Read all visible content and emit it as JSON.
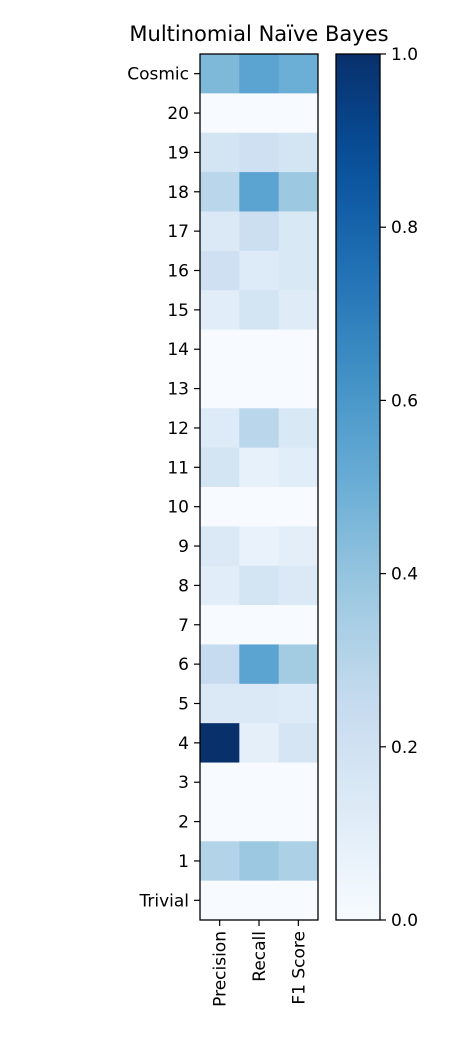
{
  "chart_data": {
    "type": "heatmap",
    "title": "Multinomial Naïve Bayes",
    "x_categories": [
      "Precision",
      "Recall",
      "F1 Score"
    ],
    "y_categories": [
      "Cosmic",
      "20",
      "19",
      "18",
      "17",
      "16",
      "15",
      "14",
      "13",
      "12",
      "11",
      "10",
      "9",
      "8",
      "7",
      "6",
      "5",
      "4",
      "3",
      "2",
      "1",
      "Trivial"
    ],
    "values": [
      [
        0.45,
        0.55,
        0.5
      ],
      [
        0.0,
        0.0,
        0.0
      ],
      [
        0.18,
        0.21,
        0.18
      ],
      [
        0.29,
        0.55,
        0.38
      ],
      [
        0.14,
        0.22,
        0.15
      ],
      [
        0.21,
        0.13,
        0.15
      ],
      [
        0.11,
        0.18,
        0.12
      ],
      [
        0.0,
        0.0,
        0.0
      ],
      [
        0.0,
        0.0,
        0.0
      ],
      [
        0.13,
        0.29,
        0.15
      ],
      [
        0.18,
        0.08,
        0.11
      ],
      [
        0.0,
        0.0,
        0.0
      ],
      [
        0.14,
        0.07,
        0.1
      ],
      [
        0.11,
        0.18,
        0.14
      ],
      [
        0.0,
        0.0,
        0.0
      ],
      [
        0.25,
        0.55,
        0.36
      ],
      [
        0.14,
        0.14,
        0.13
      ],
      [
        1.0,
        0.09,
        0.17
      ],
      [
        0.0,
        0.0,
        0.0
      ],
      [
        0.0,
        0.0,
        0.0
      ],
      [
        0.31,
        0.38,
        0.33
      ],
      [
        0.0,
        0.0,
        0.0
      ]
    ],
    "colormap": "Blues",
    "vmin": 0.0,
    "vmax": 1.0,
    "colorbar_ticks": [
      "0.0",
      "0.2",
      "0.4",
      "0.6",
      "0.8",
      "1.0"
    ],
    "colorbar_tick_values": [
      0.0,
      0.2,
      0.4,
      0.6,
      0.8,
      1.0
    ]
  }
}
